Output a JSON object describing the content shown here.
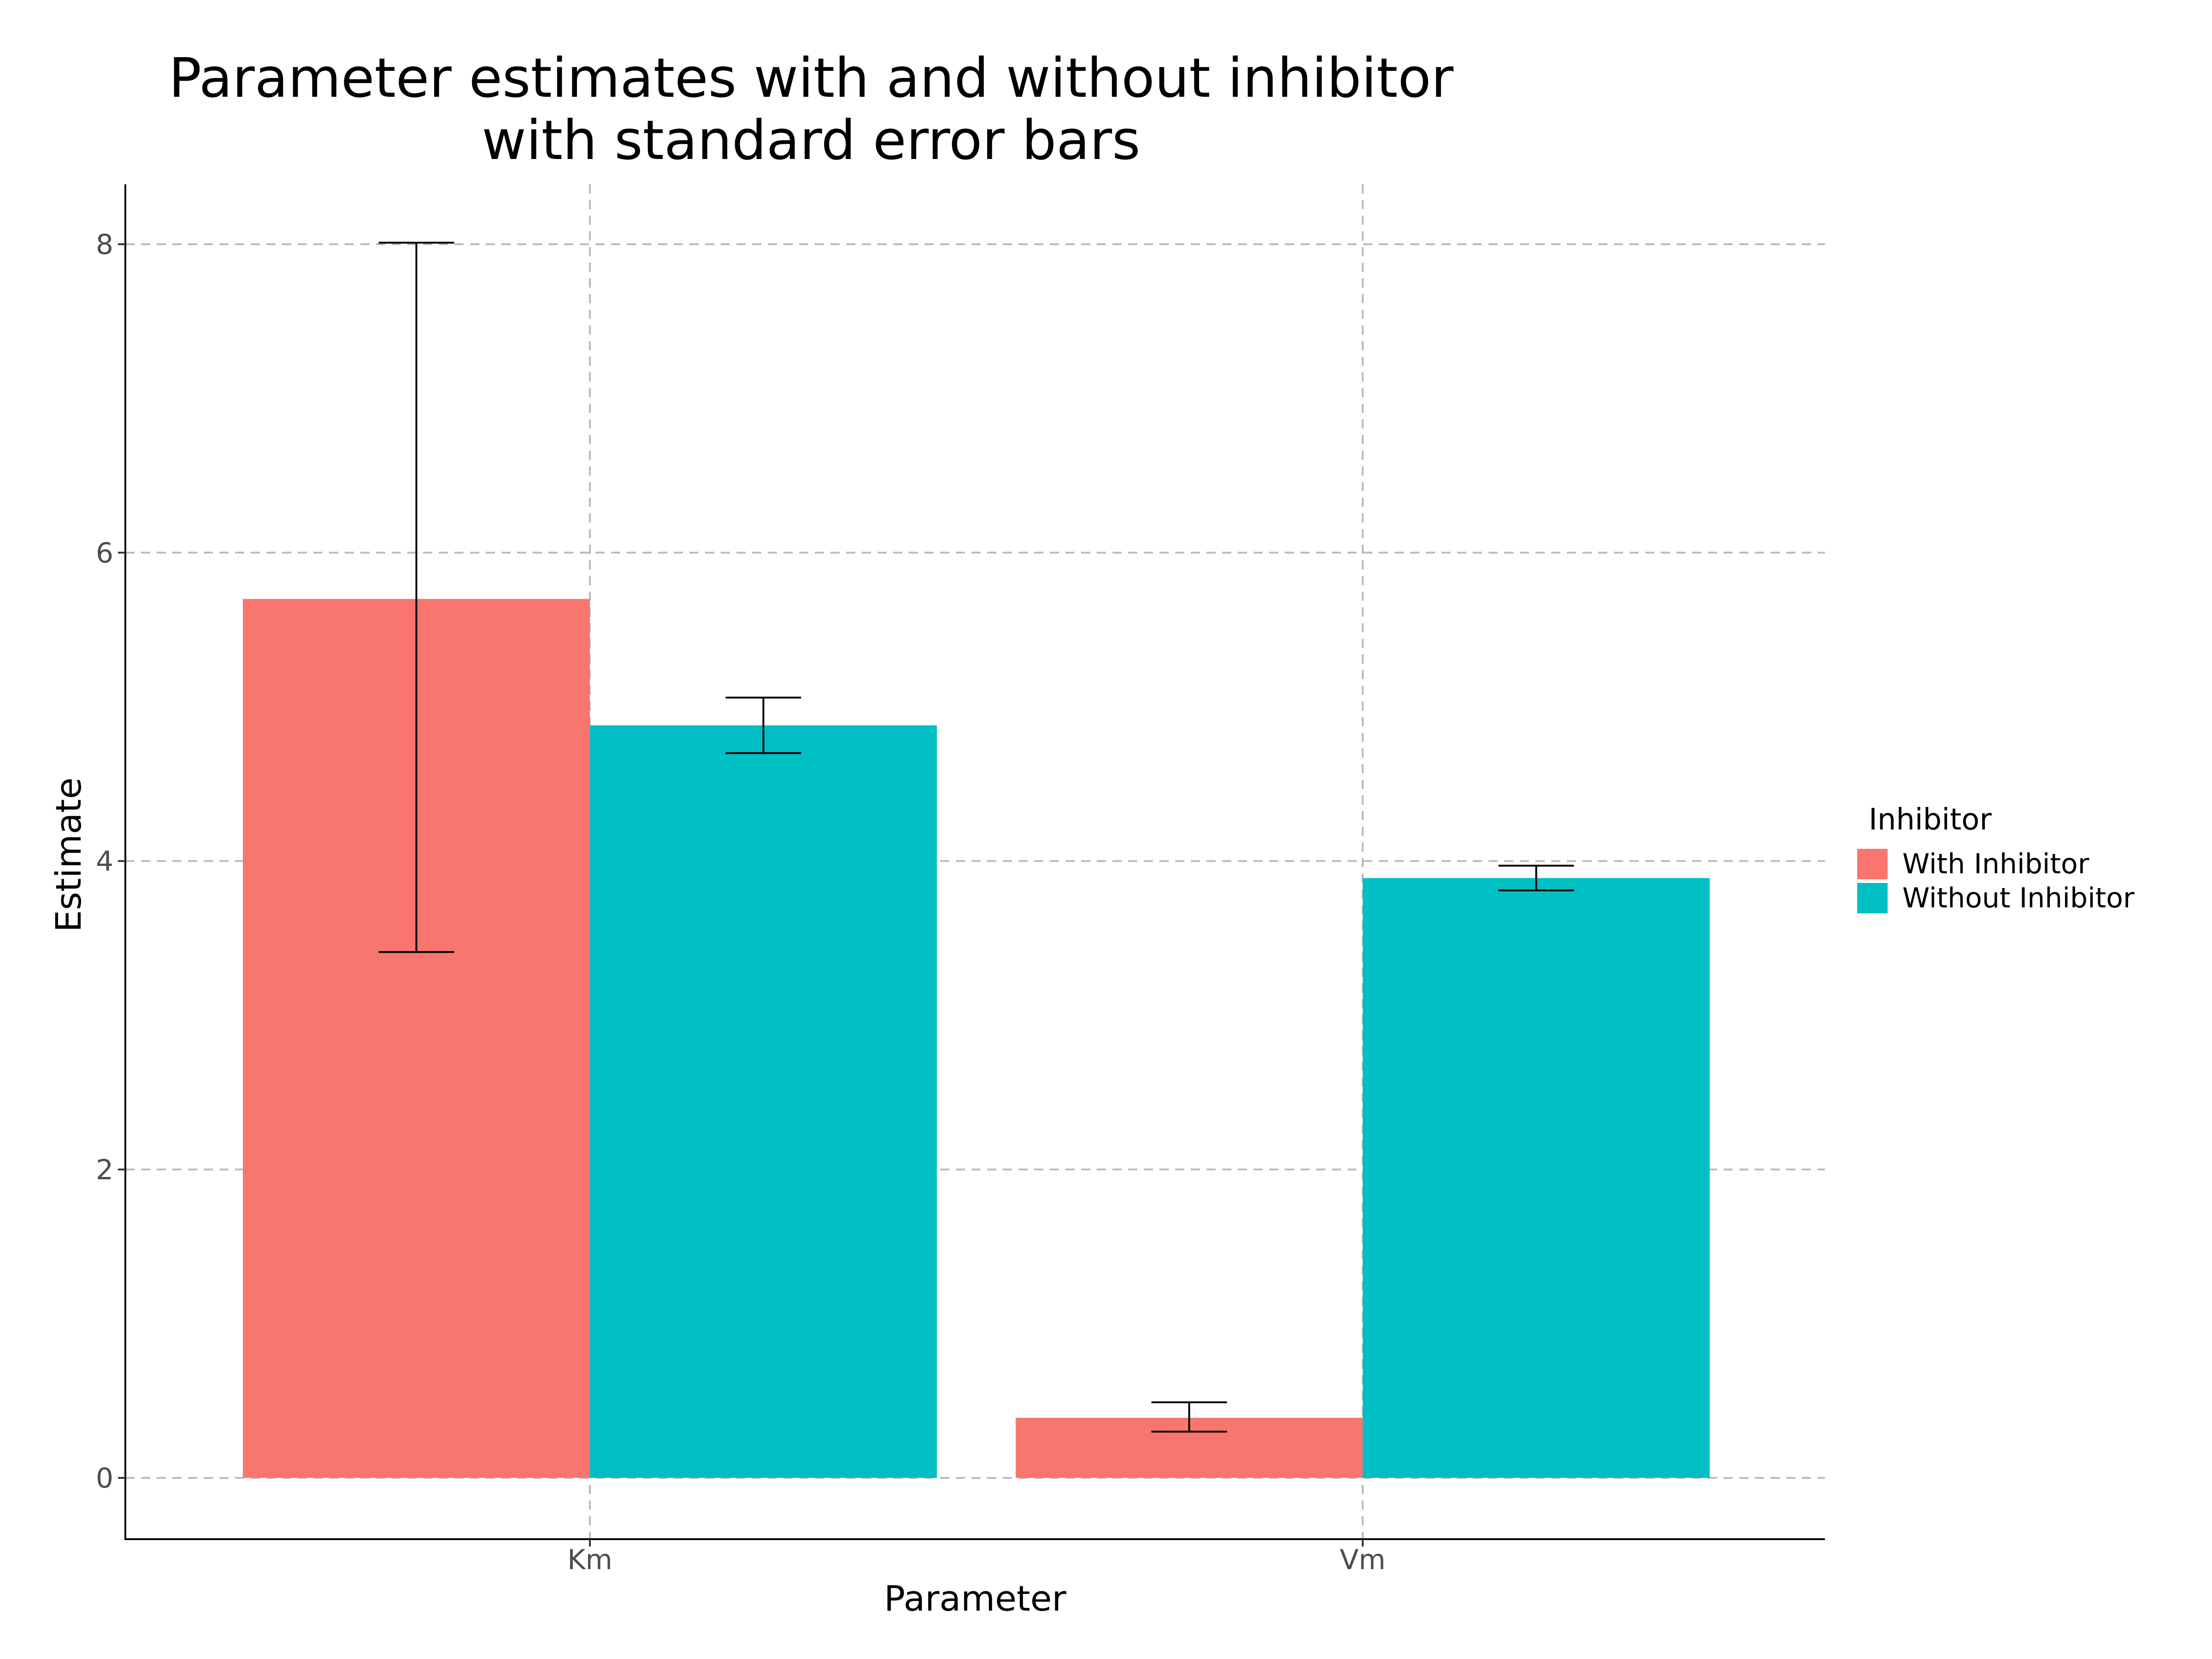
{
  "chart_data": {
    "type": "bar",
    "title_lines": [
      "Parameter estimates with and without inhibitor",
      "with standard error bars"
    ],
    "xlabel": "Parameter",
    "ylabel": "Estimate",
    "categories": [
      "Km",
      "Vm"
    ],
    "ylim": [
      -0.4,
      8.4
    ],
    "y_ticks": [
      0,
      2,
      4,
      6,
      8
    ],
    "y_tick_labels": [
      "0",
      "2",
      "4",
      "6",
      "8"
    ],
    "grid": true,
    "legend": {
      "title": "Inhibitor",
      "placement": "right"
    },
    "series": [
      {
        "name": "With Inhibitor",
        "color": "#F8766D",
        "values": [
          5.7,
          0.39
        ],
        "error_low": [
          3.41,
          0.3
        ],
        "error_high": [
          8.01,
          0.49
        ]
      },
      {
        "name": "Without Inhibitor",
        "color": "#00BFC4",
        "values": [
          4.88,
          3.89
        ],
        "error_low": [
          4.7,
          3.81
        ],
        "error_high": [
          5.06,
          3.97
        ]
      }
    ]
  }
}
